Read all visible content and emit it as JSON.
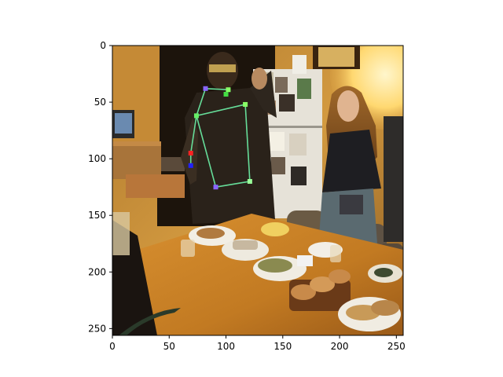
{
  "image_axes": {
    "x_ticks": [
      {
        "value": 0,
        "label": "0"
      },
      {
        "value": 50,
        "label": "50"
      },
      {
        "value": 100,
        "label": "100"
      },
      {
        "value": 150,
        "label": "150"
      },
      {
        "value": 200,
        "label": "200"
      },
      {
        "value": 250,
        "label": "250"
      }
    ],
    "y_ticks": [
      {
        "value": 0,
        "label": "0"
      },
      {
        "value": 50,
        "label": "50"
      },
      {
        "value": 100,
        "label": "100"
      },
      {
        "value": 150,
        "label": "150"
      },
      {
        "value": 200,
        "label": "200"
      },
      {
        "value": 250,
        "label": "250"
      }
    ],
    "x_range": [
      0,
      256
    ],
    "y_range": [
      0,
      256
    ]
  },
  "pose_overlay": {
    "line_color": "#66dd99",
    "keypoints": [
      {
        "id": "head-left",
        "x": 82,
        "y": 38,
        "color": "#8866ff"
      },
      {
        "id": "head-right",
        "x": 102,
        "y": 39,
        "color": "#88ff66"
      },
      {
        "id": "neck",
        "x": 100,
        "y": 43,
        "color": "#44dd44"
      },
      {
        "id": "right-shoulder",
        "x": 117,
        "y": 52,
        "color": "#88ff66"
      },
      {
        "id": "left-shoulder",
        "x": 74,
        "y": 62,
        "color": "#66ee66"
      },
      {
        "id": "right-hip",
        "x": 121,
        "y": 120,
        "color": "#99ff99"
      },
      {
        "id": "left-hip",
        "x": 91,
        "y": 125,
        "color": "#8866ff"
      },
      {
        "id": "left-elbow",
        "x": 69,
        "y": 95,
        "color": "#ff2222"
      },
      {
        "id": "left-wrist",
        "x": 69,
        "y": 106,
        "color": "#2222ff"
      }
    ],
    "edges": [
      [
        "head-left",
        "head-right"
      ],
      [
        "head-left",
        "left-shoulder"
      ],
      [
        "left-shoulder",
        "right-shoulder"
      ],
      [
        "right-shoulder",
        "right-hip"
      ],
      [
        "right-hip",
        "left-hip"
      ],
      [
        "left-hip",
        "left-shoulder"
      ],
      [
        "left-shoulder",
        "left-elbow"
      ],
      [
        "left-elbow",
        "left-wrist"
      ]
    ]
  }
}
